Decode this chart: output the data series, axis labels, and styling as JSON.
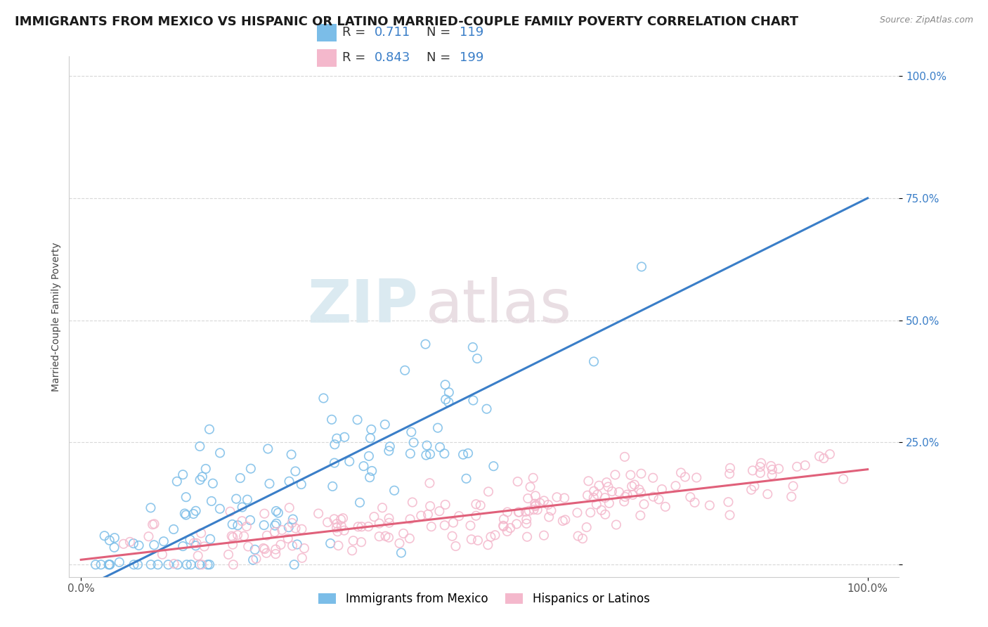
{
  "title": "IMMIGRANTS FROM MEXICO VS HISPANIC OR LATINO MARRIED-COUPLE FAMILY POVERTY CORRELATION CHART",
  "source": "Source: ZipAtlas.com",
  "ylabel": "Married-Couple Family Poverty",
  "blue_R": 0.711,
  "blue_N": 119,
  "pink_R": 0.843,
  "pink_N": 199,
  "blue_color": "#7bbde8",
  "pink_color": "#f4b8cc",
  "blue_line_color": "#3a7ec8",
  "pink_line_color": "#e0607a",
  "blue_line_endpoints": [
    [
      0.0,
      -0.05
    ],
    [
      1.0,
      0.75
    ]
  ],
  "pink_line_endpoints": [
    [
      0.0,
      0.01
    ],
    [
      1.0,
      0.195
    ]
  ],
  "watermark_zip": "ZIP",
  "watermark_atlas": "atlas",
  "legend_labels": [
    "Immigrants from Mexico",
    "Hispanics or Latinos"
  ],
  "background_color": "#ffffff",
  "grid_color": "#d8d8d8",
  "title_fontsize": 13,
  "axis_label_fontsize": 10,
  "legend_fontsize": 13,
  "tick_fontsize": 11,
  "ytick_color": "#3a7ec8"
}
